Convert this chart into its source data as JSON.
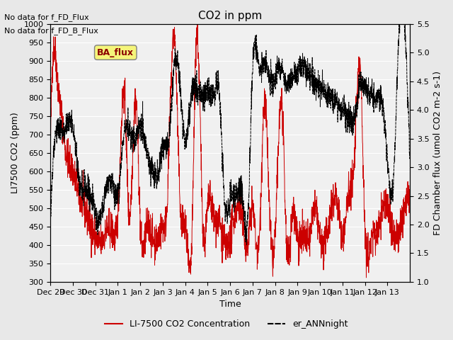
{
  "title": "CO2 in ppm",
  "xlabel": "Time",
  "ylabel_left": "LI7500 CO2 (ppm)",
  "ylabel_right": "FD Chamber flux (umol CO2 m-2 s-1)",
  "ylim_left": [
    300,
    1000
  ],
  "ylim_right": [
    1.0,
    5.5
  ],
  "yticks_left": [
    300,
    350,
    400,
    450,
    500,
    550,
    600,
    650,
    700,
    750,
    800,
    850,
    900,
    950,
    1000
  ],
  "yticks_right": [
    1.0,
    1.5,
    2.0,
    2.5,
    3.0,
    3.5,
    4.0,
    4.5,
    5.0,
    5.5
  ],
  "xtick_labels": [
    "Dec 29",
    "Dec 30",
    "Dec 31",
    "Jan 1",
    "Jan 2",
    "Jan 3",
    "Jan 4",
    "Jan 5",
    "Jan 6",
    "Jan 7",
    "Jan 8",
    "Jan 9",
    "Jan 10",
    "Jan 11",
    "Jan 12",
    "Jan 13"
  ],
  "annotations": [
    "No data for f_FD_Flux",
    "No data for f_FD_B_Flux"
  ],
  "ba_flux_label": "BA_flux",
  "legend_red": "LI-7500 CO2 Concentration",
  "legend_black": "er_ANNnight",
  "line_color_red": "#cc0000",
  "line_color_black": "#000000",
  "background_color": "#e8e8e8",
  "plot_bg_color": "#f0f0f0"
}
